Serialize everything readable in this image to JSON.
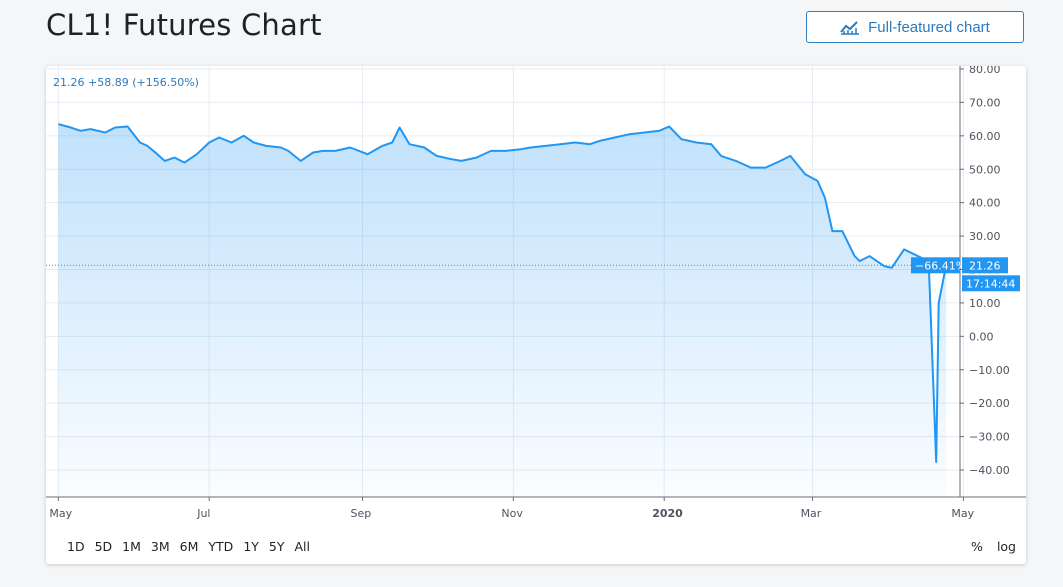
{
  "page": {
    "title": "CL1! Futures Chart",
    "button_label": "Full-featured chart",
    "button_icon": "chart-icon"
  },
  "legend": {
    "text": "21.26 +58.89 (+156.50%)"
  },
  "colors": {
    "line": "#2196f3",
    "accent": "#2a7bbd",
    "label_bg": "#2196f3",
    "grid": "#e6ecf2"
  },
  "chart_data": {
    "type": "area",
    "symbol": "CL1!",
    "ylim": [
      -45,
      82
    ],
    "y_ticks": [
      80,
      70,
      60,
      50,
      40,
      30,
      20,
      10,
      0,
      -10,
      -20,
      -30,
      -40
    ],
    "y_tick_labels": [
      "80.00",
      "70.00",
      "60.00",
      "50.00",
      "40.00",
      "30.00",
      "20.00",
      "10.00",
      "0.00",
      "−10.00",
      "−20.00",
      "−30.00",
      "−40.00"
    ],
    "x_tick_labels": [
      "May",
      "Jul",
      "Sep",
      "Nov",
      "2020",
      "Mar",
      "May"
    ],
    "x": [
      "2019-05-01",
      "2019-05-06",
      "2019-05-10",
      "2019-05-14",
      "2019-05-20",
      "2019-05-24",
      "2019-05-29",
      "2019-06-03",
      "2019-06-06",
      "2019-06-10",
      "2019-06-13",
      "2019-06-17",
      "2019-06-21",
      "2019-06-26",
      "2019-07-01",
      "2019-07-05",
      "2019-07-10",
      "2019-07-15",
      "2019-07-19",
      "2019-07-24",
      "2019-07-30",
      "2019-08-02",
      "2019-08-07",
      "2019-08-12",
      "2019-08-16",
      "2019-08-21",
      "2019-08-27",
      "2019-09-03",
      "2019-09-09",
      "2019-09-13",
      "2019-09-16",
      "2019-09-20",
      "2019-09-26",
      "2019-10-01",
      "2019-10-07",
      "2019-10-11",
      "2019-10-17",
      "2019-10-23",
      "2019-10-29",
      "2019-11-04",
      "2019-11-08",
      "2019-11-14",
      "2019-11-20",
      "2019-11-26",
      "2019-12-02",
      "2019-12-06",
      "2019-12-12",
      "2019-12-18",
      "2019-12-24",
      "2019-12-30",
      "2020-01-03",
      "2020-01-08",
      "2020-01-14",
      "2020-01-20",
      "2020-01-24",
      "2020-01-30",
      "2020-02-05",
      "2020-02-11",
      "2020-02-17",
      "2020-02-21",
      "2020-02-27",
      "2020-03-03",
      "2020-03-06",
      "2020-03-09",
      "2020-03-13",
      "2020-03-18",
      "2020-03-20",
      "2020-03-24",
      "2020-03-30",
      "2020-04-02",
      "2020-04-07",
      "2020-04-14",
      "2020-04-17",
      "2020-04-20",
      "2020-04-21",
      "2020-04-24"
    ],
    "series": [
      {
        "values": [
          63.5,
          62.5,
          61.5,
          62,
          61,
          62.5,
          62.8,
          58,
          57,
          54.5,
          52.5,
          53.5,
          52,
          54.5,
          58,
          59.5,
          58,
          60,
          58,
          57,
          56.5,
          55.5,
          52.5,
          55,
          55.5,
          55.5,
          56.5,
          54.5,
          57,
          58,
          62.5,
          57.5,
          56.5,
          54,
          53,
          52.5,
          53.5,
          55.5,
          55.5,
          56,
          56.5,
          57,
          57.5,
          58,
          57.5,
          58.5,
          59.5,
          60.5,
          61,
          61.5,
          62.8,
          59,
          58,
          57.5,
          54,
          52.5,
          50.5,
          50.5,
          52.5,
          54,
          48.5,
          46.5,
          41.5,
          31.5,
          31.5,
          24,
          22.5,
          24,
          21,
          20.5,
          26,
          23.5,
          21.5,
          -37.6,
          10,
          21.26
        ]
      }
    ],
    "last_price": "21.26",
    "last_change_pct": "−66.41%",
    "countdown": "17:14:44",
    "grid": true
  },
  "range_buttons": [
    "1D",
    "5D",
    "1M",
    "3M",
    "6M",
    "YTD",
    "1Y",
    "5Y",
    "All"
  ],
  "tools": [
    "%",
    "log"
  ]
}
